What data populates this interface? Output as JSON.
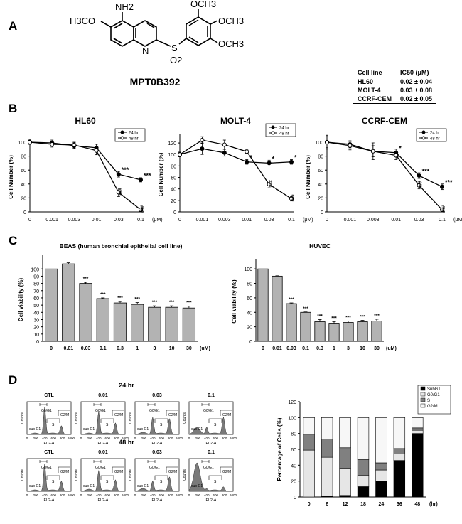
{
  "panel_labels": [
    "A",
    "B",
    "C",
    "D"
  ],
  "structure": {
    "name": "MPT0B392",
    "groups": [
      "NH2",
      "H3CO",
      "OCH3",
      "OCH3",
      "OCH3",
      "S",
      "O2",
      "N"
    ]
  },
  "ic50_table": {
    "headers": [
      "Cell line",
      "IC50 (μM)"
    ],
    "rows": [
      [
        "HL60",
        "0.02 ± 0.04"
      ],
      [
        "MOLT-4",
        "0.03 ± 0.08"
      ],
      [
        "CCRF-CEM",
        "0.02 ± 0.05"
      ]
    ]
  },
  "chart_data": [
    {
      "type": "line",
      "title": "HL60",
      "ylabel": "Cell Number (%)",
      "xunit": "(μM)",
      "categories": [
        "0",
        "0.001",
        "0.003",
        "0.01",
        "0.03",
        "0.1"
      ],
      "ylim": [
        0,
        100
      ],
      "yticks": [
        0,
        20,
        40,
        60,
        80,
        100
      ],
      "legend": [
        "24 hr",
        "48 hr"
      ],
      "series": [
        {
          "name": "24 hr",
          "marker": "filled",
          "values": [
            100,
            99,
            95,
            92,
            54,
            46
          ],
          "err": [
            3,
            4,
            4,
            5,
            4,
            3
          ],
          "sig": [
            "",
            "",
            "",
            "",
            "***",
            "***"
          ]
        },
        {
          "name": "48 hr",
          "marker": "open",
          "values": [
            100,
            97,
            96,
            88,
            28,
            3
          ],
          "err": [
            3,
            4,
            4,
            6,
            6,
            2
          ],
          "sig": [
            "",
            "",
            "",
            "",
            "###",
            "###"
          ]
        }
      ]
    },
    {
      "type": "line",
      "title": "MOLT-4",
      "ylabel": "Cell Number (%)",
      "xunit": "(μM)",
      "categories": [
        "0",
        "0.001",
        "0.003",
        "0.01",
        "0.03",
        "0.1"
      ],
      "ylim": [
        0,
        130
      ],
      "yticks": [
        0,
        20,
        40,
        60,
        80,
        100,
        120
      ],
      "legend": [
        "24 hr",
        "48 hr"
      ],
      "series": [
        {
          "name": "24 hr",
          "marker": "filled",
          "values": [
            100,
            110,
            103,
            87,
            85,
            87
          ],
          "err": [
            4,
            10,
            6,
            4,
            5,
            4
          ],
          "sig": [
            "",
            "",
            "",
            "*",
            "*",
            "*"
          ]
        },
        {
          "name": "48 hr",
          "marker": "open",
          "values": [
            100,
            125,
            117,
            105,
            48,
            23
          ],
          "err": [
            4,
            6,
            8,
            3,
            6,
            4
          ],
          "sig": [
            "",
            "",
            "",
            "",
            "###",
            "###"
          ]
        }
      ]
    },
    {
      "type": "line",
      "title": "CCRF-CEM",
      "ylabel": "Cell Number (%)",
      "xunit": "(μM)",
      "categories": [
        "0",
        "0.001",
        "0.003",
        "0.01",
        "0.03",
        "0.1"
      ],
      "ylim": [
        0,
        100
      ],
      "yticks": [
        0,
        20,
        40,
        60,
        80,
        100
      ],
      "legend": [
        "24 hr",
        "48 hr"
      ],
      "series": [
        {
          "name": "24 hr",
          "marker": "filled",
          "values": [
            100,
            97,
            87,
            85,
            52,
            36
          ],
          "err": [
            8,
            5,
            8,
            5,
            4,
            4
          ],
          "sig": [
            "",
            "",
            "",
            "*",
            "***",
            "***"
          ]
        },
        {
          "name": "48 hr",
          "marker": "open",
          "values": [
            100,
            95,
            87,
            81,
            38,
            3
          ],
          "err": [
            10,
            6,
            12,
            6,
            5,
            2
          ],
          "sig": [
            "",
            "",
            "",
            "#",
            "###",
            "###"
          ]
        }
      ]
    },
    {
      "type": "bar",
      "title": "BEAS (human bronchial epithelial cell line)",
      "ylabel": "Cell viability (%)",
      "xunit": "(uM)",
      "categories": [
        "0",
        "0.01",
        "0.03",
        "0.1",
        "0.3",
        "1",
        "3",
        "10",
        "30"
      ],
      "ylim": [
        0,
        115
      ],
      "yticks": [
        0,
        10,
        20,
        30,
        40,
        50,
        60,
        70,
        80,
        90,
        100
      ],
      "values": [
        100,
        107,
        80,
        59,
        53,
        51,
        47,
        47,
        46
      ],
      "err": [
        0,
        1.5,
        1.5,
        1,
        2,
        2.5,
        2,
        2,
        2.5
      ],
      "sig": [
        "",
        "",
        "***",
        "***",
        "***",
        "***",
        "***",
        "***",
        "***"
      ]
    },
    {
      "type": "bar",
      "title": "HUVEC",
      "ylabel": "Cell viability (%)",
      "xunit": "(uM)",
      "categories": [
        "0",
        "0.01",
        "0.03",
        "0.1",
        "0.3",
        "1",
        "3",
        "10",
        "30"
      ],
      "ylim": [
        0,
        110
      ],
      "yticks": [
        0,
        20,
        40,
        60,
        80,
        100
      ],
      "values": [
        100,
        90,
        52,
        40,
        27,
        25,
        26,
        27,
        28
      ],
      "err": [
        0,
        0.5,
        1,
        0.5,
        3,
        2,
        2,
        2,
        2.5
      ],
      "sig": [
        "",
        "",
        "***",
        "***",
        "***",
        "***",
        "***",
        "***",
        "***"
      ]
    },
    {
      "type": "bar",
      "stacked": true,
      "ylabel": "Percentage of Cells (%)",
      "xunit": "(hr)",
      "categories": [
        "0",
        "6",
        "12",
        "18",
        "24",
        "36",
        "48"
      ],
      "ylim": [
        0,
        120
      ],
      "yticks": [
        0,
        20,
        40,
        60,
        80,
        100,
        120
      ],
      "legend": [
        "SubG1",
        "G0/G1",
        "S",
        "G2/M"
      ],
      "series": [
        {
          "name": "SubG1",
          "color": "#000000",
          "values": [
            0,
            1,
            2,
            13,
            20,
            46,
            80
          ]
        },
        {
          "name": "G0/G1",
          "color": "#e6e6e6",
          "values": [
            59,
            49,
            34,
            14,
            14,
            8,
            4
          ]
        },
        {
          "name": "S",
          "color": "#808080",
          "values": [
            20,
            23,
            26,
            20,
            9,
            7,
            3
          ]
        },
        {
          "name": "G2/M",
          "color": "#f7f7f7",
          "values": [
            21,
            27,
            38,
            53,
            57,
            39,
            13
          ]
        }
      ]
    }
  ],
  "flow": {
    "rows": [
      "24 hr",
      "48 hr"
    ],
    "columns": [
      "CTL",
      "0.01",
      "0.03",
      "0.1"
    ],
    "ylabel": "Counts",
    "xlabel": "FL2-A",
    "xticks": [
      "0",
      "200",
      "400",
      "600",
      "800",
      "1000"
    ],
    "gates": [
      "G0/G1",
      "G2/M",
      "S",
      "sub G1"
    ]
  }
}
